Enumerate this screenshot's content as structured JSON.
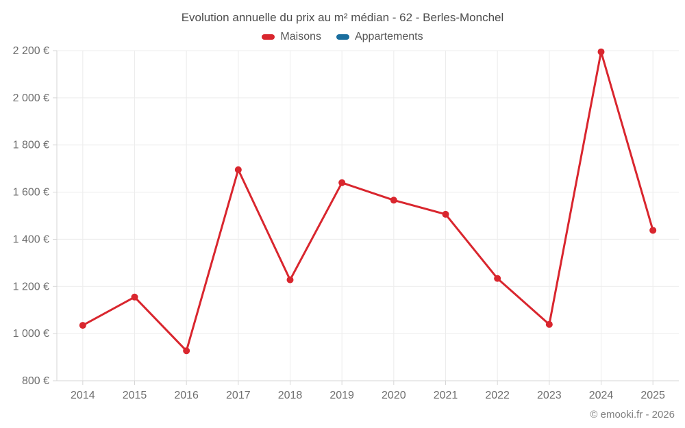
{
  "footer": {
    "copyright": "© emooki.fr - 2026"
  },
  "chart_data": {
    "type": "line",
    "title": "Evolution annuelle du prix au m² médian - 62 - Berles-Monchel",
    "xlabel": "",
    "ylabel": "",
    "categories": [
      "2014",
      "2015",
      "2016",
      "2017",
      "2018",
      "2019",
      "2020",
      "2021",
      "2022",
      "2023",
      "2024",
      "2025"
    ],
    "series": [
      {
        "name": "Maisons",
        "color": "#d9262e",
        "values": [
          1035,
          1155,
          927,
          1695,
          1228,
          1640,
          1566,
          1506,
          1234,
          1039,
          2195,
          1438
        ]
      },
      {
        "name": "Appartements",
        "color": "#1a6e9e",
        "values": []
      }
    ],
    "ylim": [
      800,
      2200
    ],
    "y_ticks": [
      {
        "value": 800,
        "label": "800 €"
      },
      {
        "value": 1000,
        "label": "1 000 €"
      },
      {
        "value": 1200,
        "label": "1 200 €"
      },
      {
        "value": 1400,
        "label": "1 400 €"
      },
      {
        "value": 1600,
        "label": "1 600 €"
      },
      {
        "value": 1800,
        "label": "1 800 €"
      },
      {
        "value": 2000,
        "label": "2 000 €"
      },
      {
        "value": 2200,
        "label": "2 200 €"
      }
    ],
    "grid": true,
    "legend_position": "top",
    "currency": "€"
  }
}
